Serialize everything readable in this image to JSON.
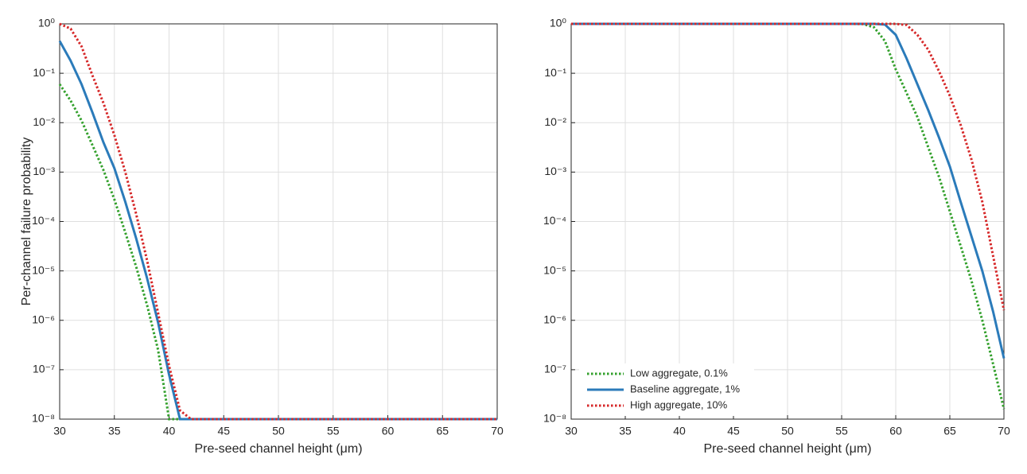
{
  "chart_data": [
    {
      "type": "line",
      "ylabel": "Per-channel failure probability",
      "xlabel": "Pre-seed channel height (μm)",
      "x": [
        30,
        31,
        32,
        33,
        34,
        35,
        36,
        37,
        38,
        39,
        40,
        41,
        42,
        50,
        60,
        70
      ],
      "series": [
        {
          "color": "#33a02c",
          "style": "dotted",
          "values": [
            0.06,
            0.028,
            0.011,
            0.0035,
            0.0011,
            0.00028,
            6e-05,
            1.2e-05,
            2e-06,
            2.5e-07,
            1e-08,
            1e-08,
            1e-08,
            1e-08,
            1e-08,
            1e-08
          ]
        },
        {
          "color": "#2b7bba",
          "style": "solid",
          "values": [
            0.45,
            0.18,
            0.06,
            0.016,
            0.004,
            0.0012,
            0.00025,
            4.5e-05,
            7e-06,
            9e-07,
            8e-08,
            1e-08,
            1e-08,
            1e-08,
            1e-08,
            1e-08
          ]
        },
        {
          "color": "#d62728",
          "style": "dotted",
          "values": [
            1,
            0.8,
            0.35,
            0.09,
            0.025,
            0.0056,
            0.001,
            0.00014,
            1.6e-05,
            1.4e-06,
            1.2e-07,
            1.5e-08,
            1e-08,
            1e-08,
            1e-08,
            1e-08
          ]
        }
      ],
      "xlim": [
        30,
        70
      ],
      "xticks": [
        30,
        35,
        40,
        45,
        50,
        55,
        60,
        65,
        70
      ],
      "ylim": [
        1e-08,
        1
      ],
      "log_y": true,
      "yticks": [
        {
          "value": 1,
          "label": "10⁰"
        },
        {
          "value": 0.1,
          "label": "10⁻¹"
        },
        {
          "value": 0.01,
          "label": "10⁻²"
        },
        {
          "value": 0.001,
          "label": "10⁻³"
        },
        {
          "value": 0.0001,
          "label": "10⁻⁴"
        },
        {
          "value": 1e-05,
          "label": "10⁻⁵"
        },
        {
          "value": 1e-06,
          "label": "10⁻⁶"
        },
        {
          "value": 1e-07,
          "label": "10⁻⁷"
        },
        {
          "value": 1e-08,
          "label": "10⁻⁸"
        }
      ],
      "grid": true
    },
    {
      "type": "line",
      "xlabel": "Pre-seed channel height (μm)",
      "x": [
        30,
        40,
        50,
        55,
        56,
        57,
        58,
        59,
        60,
        61,
        62,
        63,
        64,
        65,
        66,
        67,
        68,
        69,
        70
      ],
      "series": [
        {
          "name": "Low aggregate, 0.1%",
          "color": "#33a02c",
          "style": "dotted",
          "values": [
            1,
            1,
            1,
            1,
            1,
            0.99,
            0.85,
            0.45,
            0.12,
            0.04,
            0.013,
            0.0032,
            0.0008,
            0.00016,
            3.2e-05,
            6.3e-06,
            1e-06,
            1.3e-07,
            1.6e-08
          ]
        },
        {
          "name": "Baseline aggregate, 1%",
          "color": "#2b7bba",
          "style": "solid",
          "values": [
            1,
            1,
            1,
            1,
            1,
            1,
            1,
            0.97,
            0.6,
            0.2,
            0.06,
            0.018,
            0.005,
            0.0013,
            0.00025,
            5e-05,
            1e-05,
            1.5e-06,
            1.7e-07
          ]
        },
        {
          "name": "High aggregate, 10%",
          "color": "#d62728",
          "style": "dotted",
          "values": [
            1,
            1,
            1,
            1,
            1,
            1,
            1,
            1,
            1,
            0.95,
            0.6,
            0.3,
            0.11,
            0.035,
            0.009,
            0.0018,
            0.00025,
            2e-05,
            1.6e-06
          ]
        }
      ],
      "xlim": [
        30,
        70
      ],
      "xticks": [
        30,
        35,
        40,
        45,
        50,
        55,
        60,
        65,
        70
      ],
      "ylim": [
        1e-08,
        1
      ],
      "log_y": true,
      "yticks": [
        {
          "value": 1,
          "label": "10⁰"
        },
        {
          "value": 0.1,
          "label": "10⁻¹"
        },
        {
          "value": 0.01,
          "label": "10⁻²"
        },
        {
          "value": 0.001,
          "label": "10⁻³"
        },
        {
          "value": 0.0001,
          "label": "10⁻⁴"
        },
        {
          "value": 1e-05,
          "label": "10⁻⁵"
        },
        {
          "value": 1e-06,
          "label": "10⁻⁶"
        },
        {
          "value": 1e-07,
          "label": "10⁻⁷"
        },
        {
          "value": 1e-08,
          "label": "10⁻⁸"
        }
      ],
      "grid": true,
      "legend": "lower left"
    }
  ]
}
